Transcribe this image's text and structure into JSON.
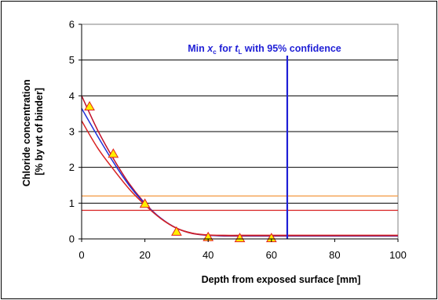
{
  "chart_data": {
    "type": "scatter",
    "title": "",
    "xlabel": "Depth from exposed surface [mm]",
    "ylabel_line1": "Chloride concentration",
    "ylabel_line2": "[% by wt of binder]",
    "xlim": [
      0,
      100
    ],
    "ylim": [
      0,
      6
    ],
    "x_ticks": [
      0,
      20,
      40,
      60,
      80,
      100
    ],
    "y_ticks": [
      0,
      1,
      2,
      3,
      4,
      5,
      6
    ],
    "grid": "horizontal",
    "legend": "none",
    "annotation": {
      "prefix": "Min ",
      "var": "x",
      "var_sub": "c",
      "middle": " for ",
      "var2": "t",
      "var2_sub": "L",
      "suffix": " with 95% confidence",
      "color": "#1f1fd6"
    },
    "vertical_line": {
      "x": 65,
      "color": "#1f1fd6"
    },
    "threshold_lines": [
      {
        "y": 1.2,
        "color": "#f5a050"
      },
      {
        "y": 0.8,
        "color": "#d82020"
      }
    ],
    "markers": {
      "shape": "triangle",
      "fill": "#ffee00",
      "stroke": "#e02020",
      "points": [
        {
          "x": 2.5,
          "y": 3.7
        },
        {
          "x": 10,
          "y": 2.38
        },
        {
          "x": 20,
          "y": 0.98
        },
        {
          "x": 30,
          "y": 0.2
        },
        {
          "x": 40,
          "y": 0.05
        },
        {
          "x": 50,
          "y": 0.02
        },
        {
          "x": 60,
          "y": 0.02
        }
      ]
    },
    "series": [
      {
        "color": "#c0102a",
        "x": [
          0,
          5,
          10,
          15,
          20,
          25,
          30,
          35,
          40,
          45,
          50,
          60,
          70,
          80,
          90,
          100
        ],
        "y": [
          4.0,
          3.05,
          2.25,
          1.55,
          1.0,
          0.58,
          0.3,
          0.15,
          0.1,
          0.08,
          0.08,
          0.08,
          0.08,
          0.08,
          0.08,
          0.08
        ]
      },
      {
        "color": "#2030d8",
        "x": [
          0,
          5,
          10,
          15,
          20,
          25,
          30,
          35,
          40,
          45,
          50,
          60,
          70,
          80,
          90,
          100
        ],
        "y": [
          3.65,
          2.88,
          2.15,
          1.5,
          0.98,
          0.58,
          0.3,
          0.16,
          0.1,
          0.09,
          0.09,
          0.09,
          0.09,
          0.09,
          0.09,
          0.09
        ]
      },
      {
        "color": "#d82020",
        "x": [
          0,
          5,
          10,
          15,
          20,
          25,
          30,
          35,
          40,
          45,
          50,
          60,
          70,
          80,
          90,
          100
        ],
        "y": [
          3.3,
          2.55,
          1.95,
          1.4,
          0.95,
          0.57,
          0.3,
          0.16,
          0.11,
          0.1,
          0.1,
          0.1,
          0.1,
          0.1,
          0.1,
          0.1
        ]
      }
    ]
  }
}
